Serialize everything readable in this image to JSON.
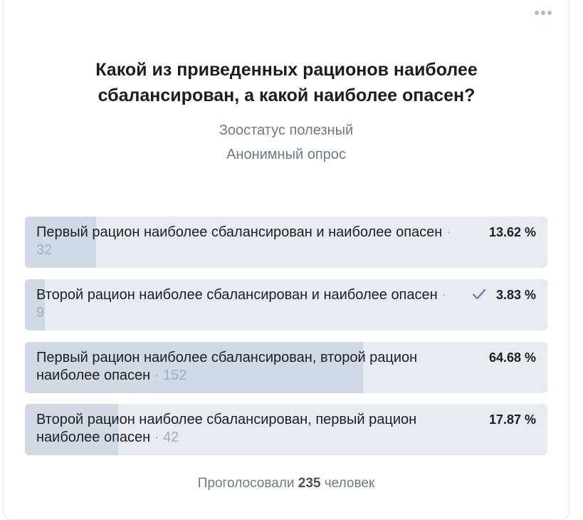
{
  "poll": {
    "question": "Какой из приведенных рационов наиболее сбалансирован, а какой наиболее опасен?",
    "author": "Зоостатус полезный",
    "type": "Анонимный опрос",
    "options": [
      {
        "label": "Первый рацион наиболее сбалансирован и наиболее опасен",
        "votes": "32",
        "percent_text": "13.62 %",
        "percent": 13.62,
        "selected": false
      },
      {
        "label": "Второй рацион наиболее сбалансирован и наиболее опасен",
        "votes": "9",
        "percent_text": "3.83 %",
        "percent": 3.83,
        "selected": true
      },
      {
        "label": "Первый рацион наиболее сбалансирован, второй рацион наиболее опасен",
        "votes": "152",
        "percent_text": "64.68 %",
        "percent": 64.68,
        "selected": false
      },
      {
        "label": "Второй рацион наиболее сбалансирован, первый рацион наиболее опасен",
        "votes": "42",
        "percent_text": "17.87 %",
        "percent": 17.87,
        "selected": false
      }
    ],
    "footer_prefix": "Проголосовали",
    "footer_count": "235",
    "footer_suffix": "человек",
    "separator": "·"
  },
  "icons": {
    "more": "more-dots-icon",
    "check": "checkmark-icon"
  },
  "colors": {
    "bar_background": "#e7ebf1",
    "bar_fill": "#d1d9e4",
    "check": "#5181b8",
    "muted_text": "#707881"
  }
}
